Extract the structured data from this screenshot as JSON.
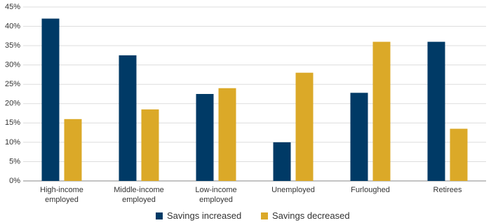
{
  "chart_data": {
    "type": "bar",
    "categories": [
      "High-income employed",
      "Middle-income employed",
      "Low-income employed",
      "Unemployed",
      "Furloughed",
      "Retirees"
    ],
    "series": [
      {
        "name": "Savings increased",
        "color": "#003a66",
        "values": [
          42,
          32.5,
          22.5,
          10,
          22.8,
          36
        ]
      },
      {
        "name": "Savings decreased",
        "color": "#dba928",
        "values": [
          16,
          18.5,
          24,
          28,
          36,
          13.5
        ]
      }
    ],
    "ylim": [
      0,
      45
    ],
    "yticks": [
      {
        "value": 0,
        "label": "0%"
      },
      {
        "value": 5,
        "label": "5%"
      },
      {
        "value": 10,
        "label": "10%"
      },
      {
        "value": 15,
        "label": "15%"
      },
      {
        "value": 20,
        "label": "20%"
      },
      {
        "value": 25,
        "label": "25%"
      },
      {
        "value": 30,
        "label": "30%"
      },
      {
        "value": 35,
        "label": "35%"
      },
      {
        "value": 40,
        "label": "40%"
      },
      {
        "value": 45,
        "label": "45%"
      }
    ],
    "grid": true
  }
}
